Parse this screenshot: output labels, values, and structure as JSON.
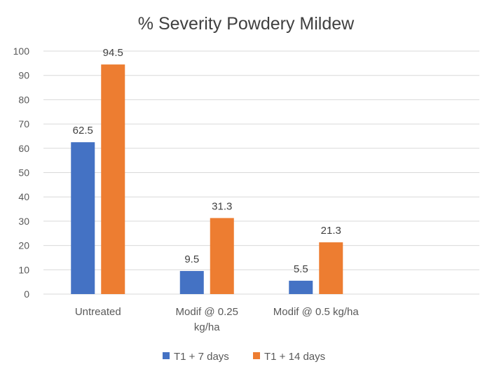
{
  "chart_data": {
    "type": "bar",
    "title": "% Severity Powdery Mildew",
    "categories": [
      [
        "Untreated"
      ],
      [
        "Modif @ 0.25",
        "kg/ha"
      ],
      [
        "Modif @ 0.5 kg/ha"
      ],
      [
        ""
      ]
    ],
    "series": [
      {
        "name": "T1 + 7 days",
        "values": [
          62.5,
          9.5,
          5.5,
          null
        ],
        "color": "#4472C4"
      },
      {
        "name": "T1 + 14 days",
        "values": [
          94.5,
          31.3,
          21.3,
          null
        ],
        "color": "#ED7D31"
      }
    ],
    "ylim": [
      0,
      100
    ],
    "yticks": [
      0,
      10,
      20,
      30,
      40,
      50,
      60,
      70,
      80,
      90,
      100
    ],
    "grid": true,
    "gridColor": "#d9d9d9",
    "legend": "bottom"
  }
}
